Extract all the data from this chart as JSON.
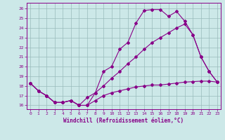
{
  "xlabel": "Windchill (Refroidissement éolien,°C)",
  "bg_color": "#cce8e8",
  "line_color": "#880088",
  "grid_color": "#99bbbb",
  "xlim": [
    -0.4,
    23.4
  ],
  "ylim": [
    15.6,
    26.6
  ],
  "xticks": [
    0,
    1,
    2,
    3,
    4,
    5,
    6,
    7,
    8,
    9,
    10,
    11,
    12,
    13,
    14,
    15,
    16,
    17,
    18,
    19,
    20,
    21,
    22,
    23
  ],
  "yticks": [
    16,
    17,
    18,
    19,
    20,
    21,
    22,
    23,
    24,
    25,
    26
  ],
  "line1_y": [
    18.3,
    17.5,
    17.0,
    16.3,
    16.3,
    16.5,
    16.0,
    16.0,
    17.3,
    19.5,
    20.0,
    21.8,
    22.5,
    24.5,
    25.8,
    25.9,
    25.9,
    25.2,
    25.7,
    24.7,
    23.3,
    21.0,
    19.5,
    18.4
  ],
  "line2_y": [
    18.3,
    17.5,
    17.0,
    16.3,
    16.3,
    16.5,
    16.0,
    16.8,
    17.3,
    18.0,
    18.8,
    19.5,
    20.3,
    21.0,
    21.8,
    22.5,
    23.0,
    23.5,
    24.0,
    24.4,
    23.3,
    21.0,
    19.5,
    18.4
  ],
  "line3_y": [
    18.3,
    17.5,
    17.0,
    16.3,
    16.3,
    16.5,
    16.0,
    16.0,
    16.5,
    17.0,
    17.3,
    17.5,
    17.7,
    17.9,
    18.0,
    18.1,
    18.1,
    18.2,
    18.3,
    18.4,
    18.45,
    18.5,
    18.5,
    18.4
  ]
}
